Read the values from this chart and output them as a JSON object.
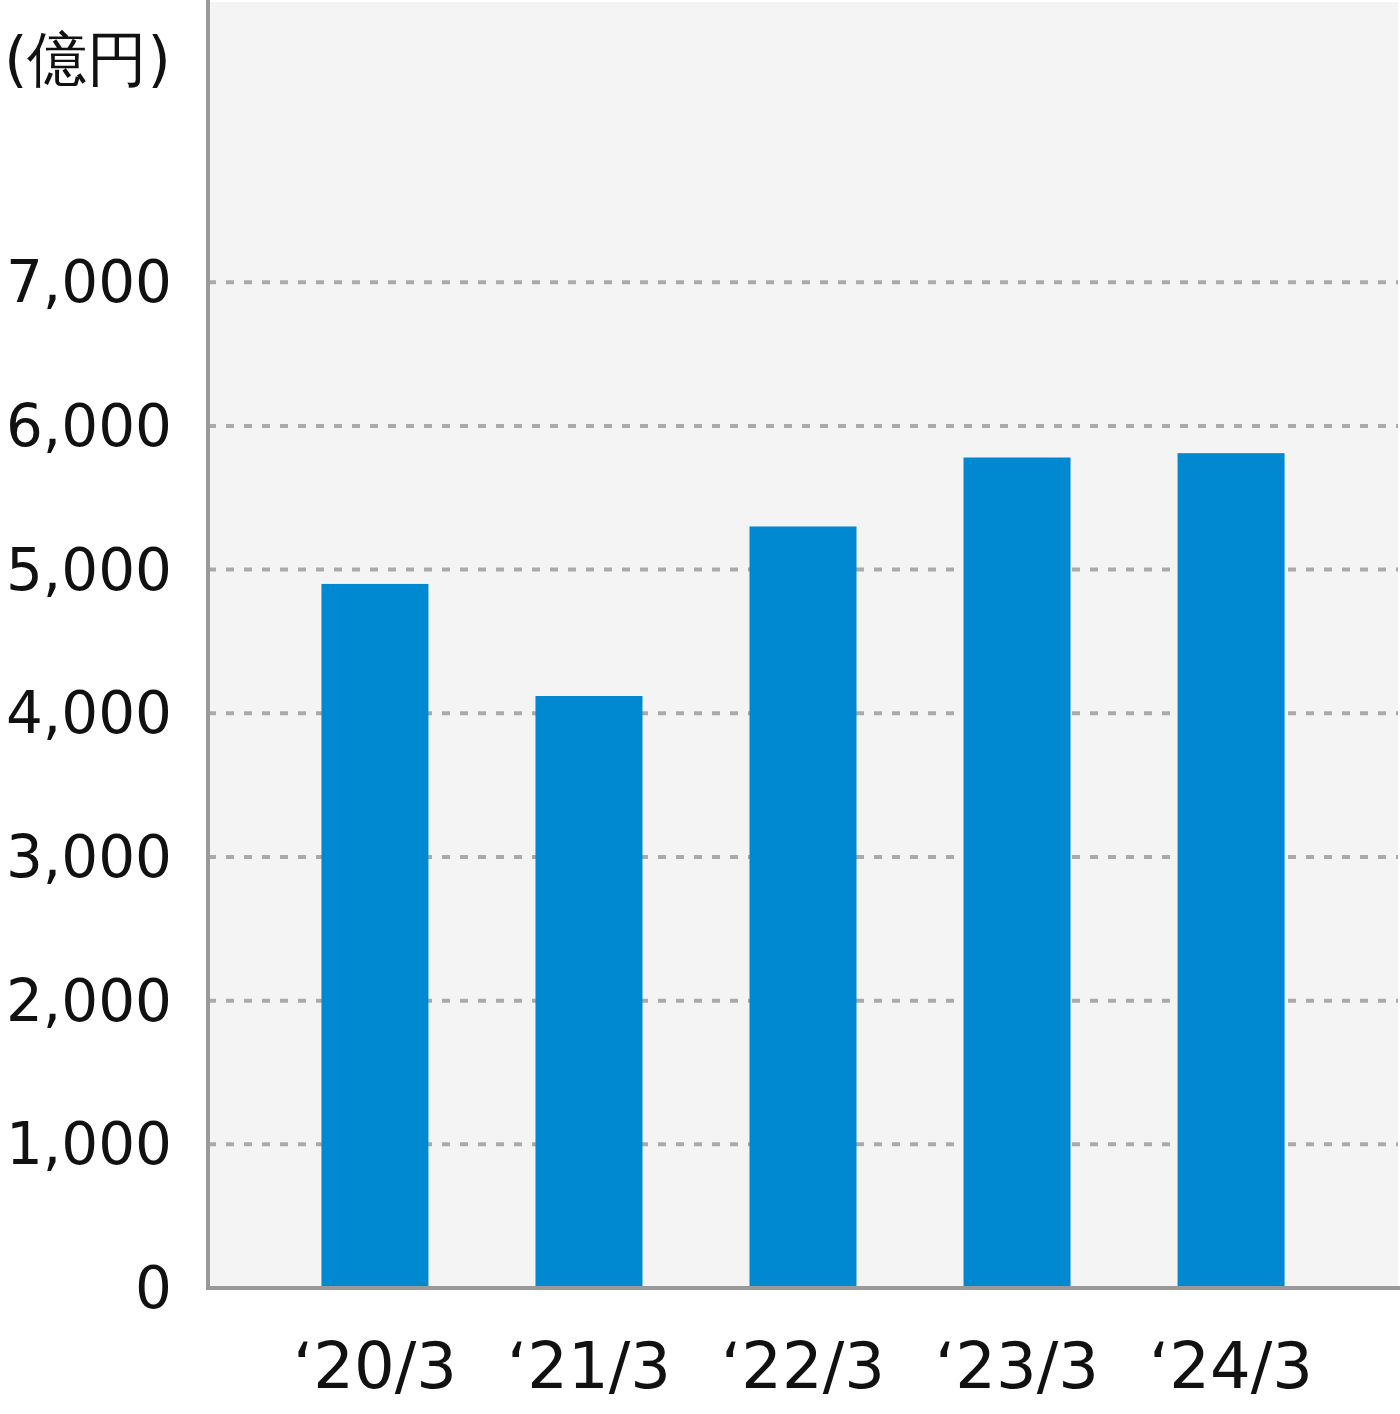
{
  "chart_data": {
    "type": "bar",
    "ylabel": "(億円)",
    "categories": [
      "‘20/3",
      "‘21/3",
      "‘22/3",
      "‘23/3",
      "‘24/3"
    ],
    "values": [
      4900,
      4120,
      5300,
      5780,
      5810
    ],
    "color": "#0089d0",
    "ylim": [
      0,
      8950
    ],
    "yticks": [
      0,
      {
        "value": 1000,
        "label": "1,000"
      },
      {
        "value": 2000,
        "label": "2,000"
      },
      {
        "value": 3000,
        "label": "3,000"
      },
      {
        "value": 4000,
        "label": "4,000"
      },
      {
        "value": 5000,
        "label": "5,000"
      },
      {
        "value": 6000,
        "label": "6,000"
      },
      {
        "value": 7000,
        "label": "7,000"
      }
    ],
    "grid": "y",
    "line_style": "dashed"
  }
}
